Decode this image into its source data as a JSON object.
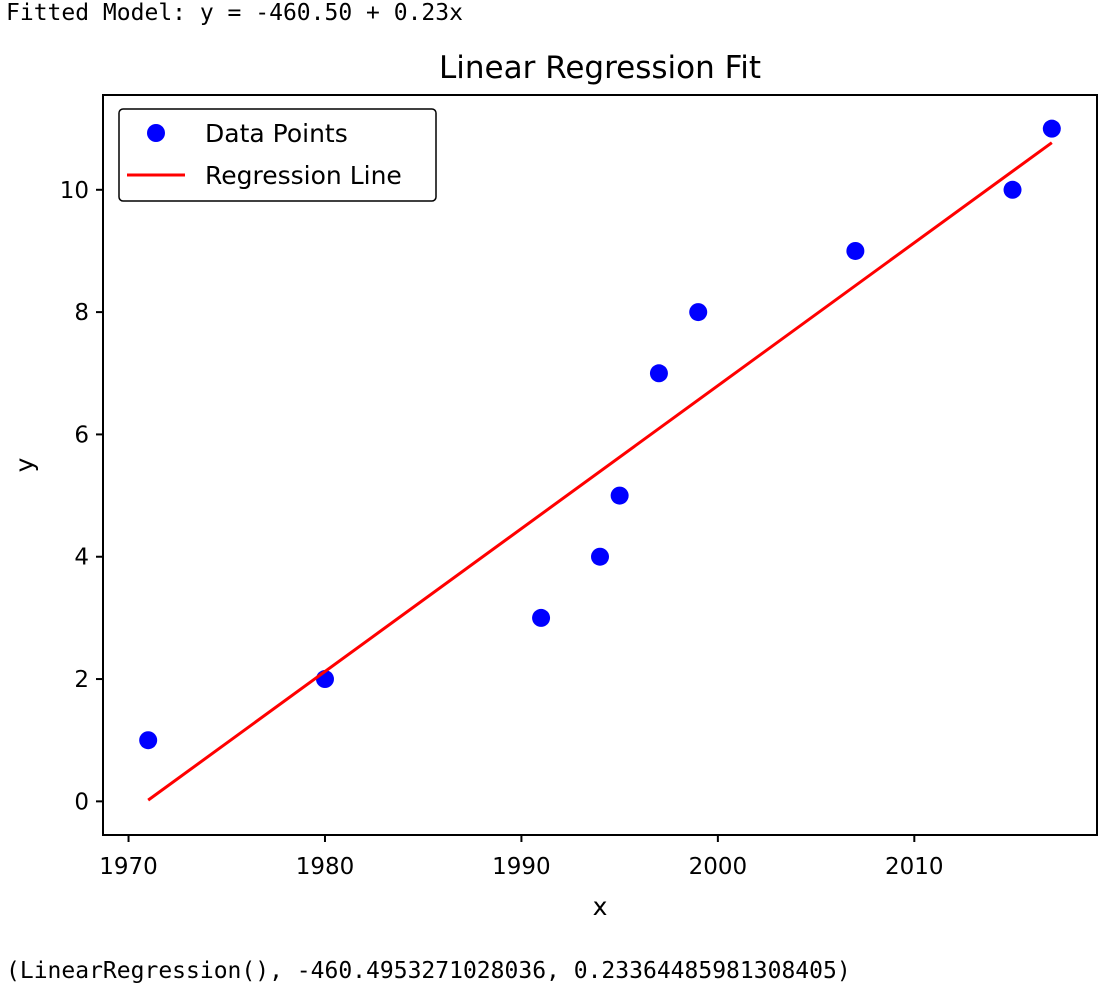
{
  "header_text": "Fitted Model: y = -460.50 + 0.23x",
  "output_text": "(LinearRegression(), -460.4953271028036, 0.23364485981308405)",
  "chart_data": {
    "type": "scatter",
    "title": "Linear Regression Fit",
    "x_label": "x",
    "y_label": "y",
    "xlim": [
      1968.7,
      2019.3
    ],
    "ylim": [
      -0.55,
      11.55
    ],
    "xticks": [
      1970,
      1980,
      1990,
      2000,
      2010
    ],
    "yticks": [
      0,
      2,
      4,
      6,
      8,
      10
    ],
    "grid": false,
    "legend": "upper left",
    "series": [
      {
        "name": "Data Points",
        "type": "scatter",
        "color": "blue",
        "x": [
          1971,
          1980,
          1991,
          1994,
          1995,
          1997,
          1999,
          2007,
          2015,
          2017
        ],
        "values": [
          1,
          2,
          3,
          4,
          5,
          7,
          8,
          9,
          10,
          11
        ]
      },
      {
        "name": "Regression Line",
        "type": "line",
        "color": "red",
        "x": [
          1971,
          2017
        ],
        "values": [
          0.02,
          10.77
        ]
      }
    ]
  }
}
